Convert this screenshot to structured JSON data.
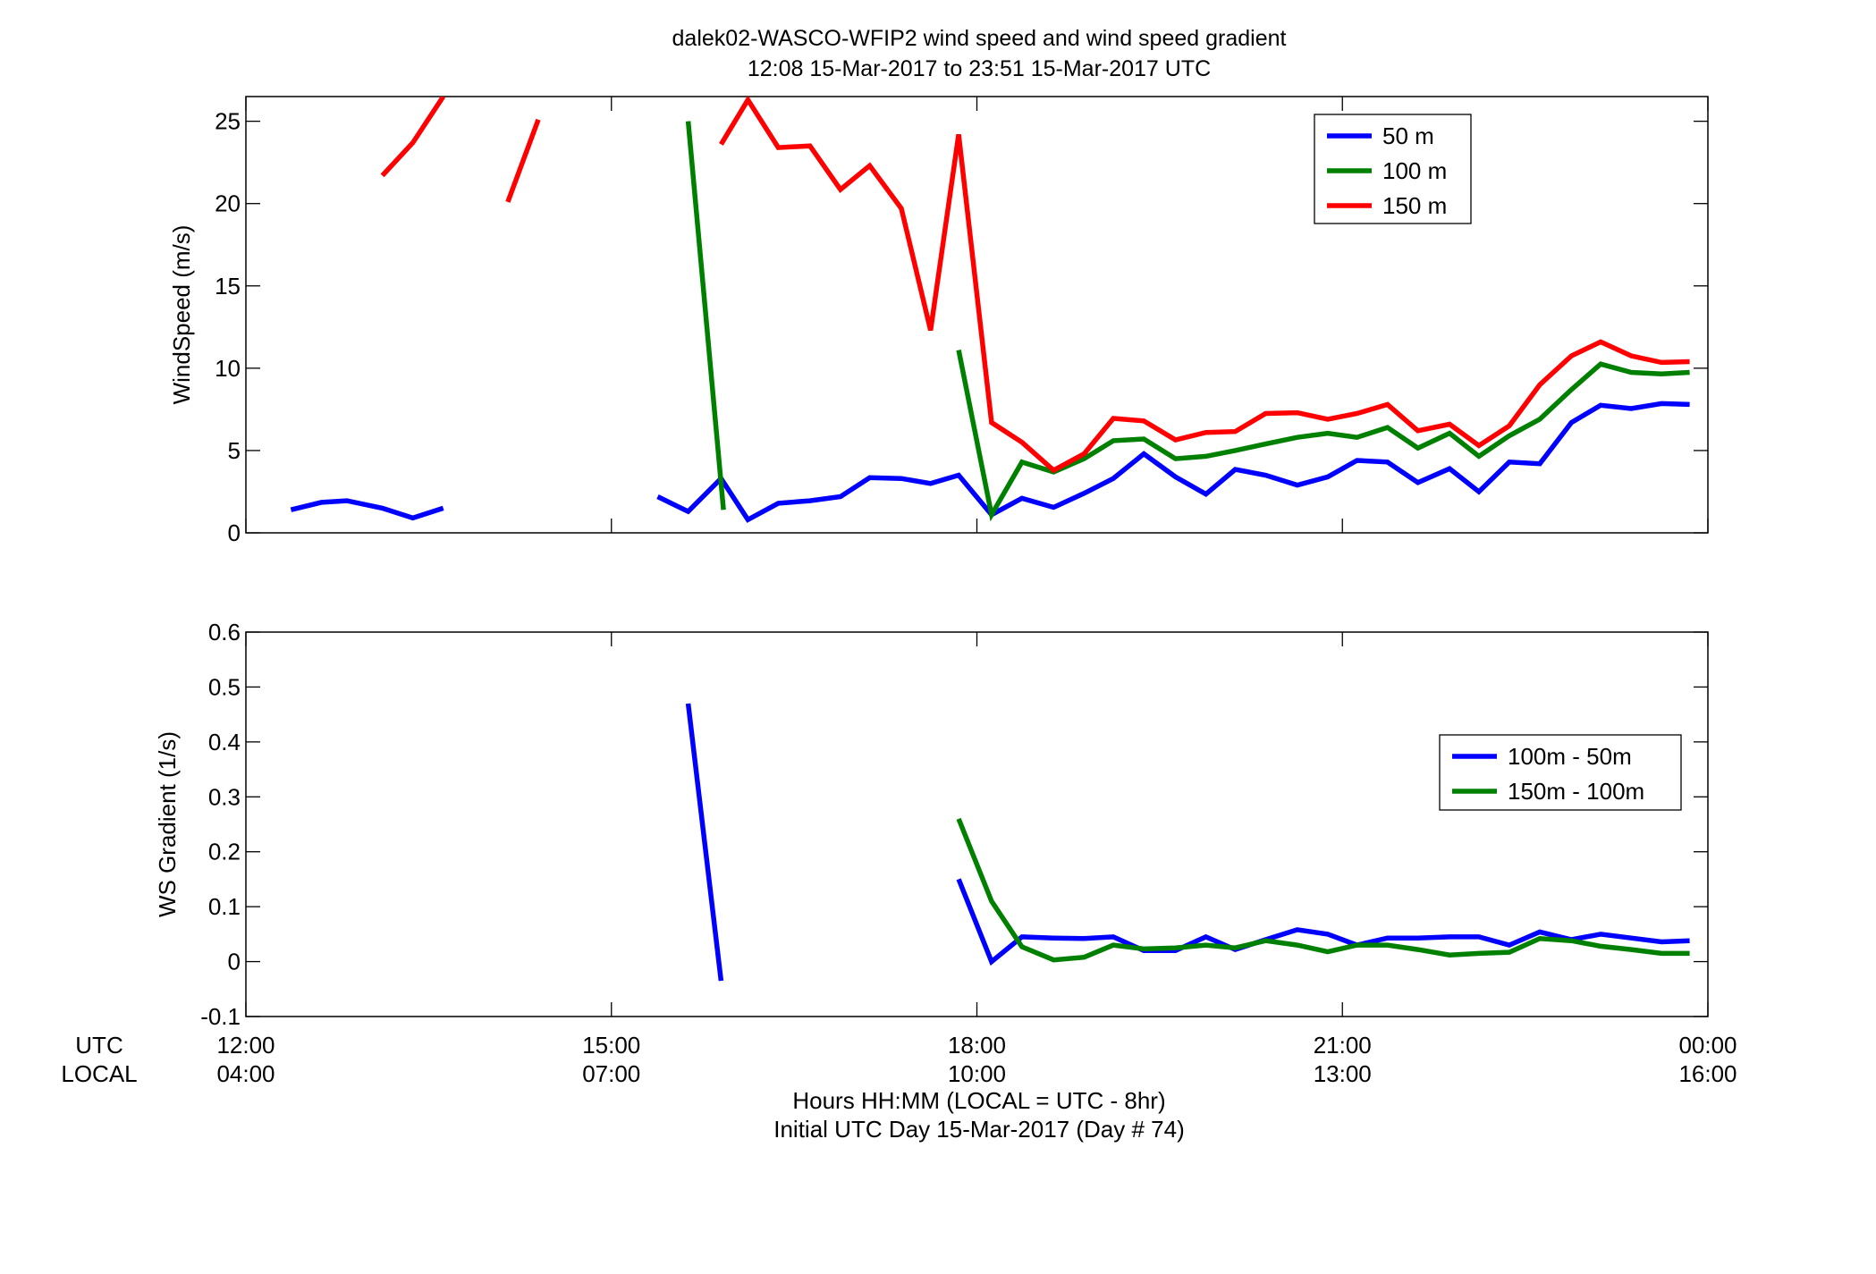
{
  "title": {
    "line1": "dalek02-WASCO-WFIP2  wind speed and wind speed gradient",
    "line2": "12:08 15-Mar-2017 to 23:51 15-Mar-2017  UTC"
  },
  "x_axis": {
    "row_label_utc": "UTC",
    "row_label_local": "LOCAL",
    "label_line1": "Hours HH:MM  (LOCAL = UTC - 8hr)",
    "label_line2": "Initial UTC Day 15-Mar-2017 (Day # 74)"
  },
  "chart_data": [
    {
      "id": "windspeed",
      "type": "line",
      "ylabel": "WindSpeed (m/s)",
      "xlabel": "Hours HH:MM  (LOCAL = UTC - 8hr)",
      "xlim": [
        12,
        24
      ],
      "ylim": [
        0,
        26.5
      ],
      "yticks": [
        0,
        5,
        10,
        15,
        20,
        25
      ],
      "ytick_labels": [
        "0",
        "5",
        "10",
        "15",
        "20",
        "25"
      ],
      "xticks": [
        12,
        15,
        18,
        21,
        24
      ],
      "xtick_labels_utc": [
        "12:00",
        "15:00",
        "18:00",
        "21:00",
        "00:00"
      ],
      "xtick_labels_local": [
        "04:00",
        "07:00",
        "10:00",
        "13:00",
        "16:00"
      ],
      "grid": false,
      "legend_position": "top-right",
      "series": [
        {
          "name": "50 m",
          "color": "#0000ff",
          "points": [
            [
              12.37,
              1.4
            ],
            [
              12.62,
              1.85
            ],
            [
              12.83,
              1.95
            ],
            [
              13.12,
              1.5
            ],
            [
              13.37,
              0.9
            ],
            [
              13.62,
              1.5
            ],
            null,
            [
              15.38,
              2.2
            ],
            [
              15.63,
              1.3
            ],
            [
              15.9,
              3.3
            ],
            [
              16.12,
              0.8
            ],
            [
              16.37,
              1.8
            ],
            [
              16.63,
              1.95
            ],
            [
              16.88,
              2.2
            ],
            [
              17.12,
              3.35
            ],
            [
              17.38,
              3.3
            ],
            [
              17.62,
              3.0
            ],
            [
              17.85,
              3.5
            ],
            [
              18.12,
              1.1
            ],
            [
              18.37,
              2.1
            ],
            [
              18.63,
              1.55
            ],
            [
              18.88,
              2.4
            ],
            [
              19.12,
              3.3
            ],
            [
              19.37,
              4.8
            ],
            [
              19.63,
              3.4
            ],
            [
              19.88,
              2.35
            ],
            [
              20.12,
              3.85
            ],
            [
              20.37,
              3.5
            ],
            [
              20.63,
              2.9
            ],
            [
              20.88,
              3.4
            ],
            [
              21.12,
              4.4
            ],
            [
              21.37,
              4.3
            ],
            [
              21.62,
              3.05
            ],
            [
              21.88,
              3.9
            ],
            [
              22.12,
              2.5
            ],
            [
              22.37,
              4.3
            ],
            [
              22.62,
              4.2
            ],
            [
              22.88,
              6.7
            ],
            [
              23.12,
              7.75
            ],
            [
              23.37,
              7.55
            ],
            [
              23.62,
              7.85
            ],
            [
              23.85,
              7.8
            ]
          ]
        },
        {
          "name": "100 m",
          "color": "#008000",
          "points": [
            [
              15.63,
              25.0
            ],
            [
              15.92,
              1.4
            ],
            null,
            [
              17.85,
              11.1
            ],
            [
              18.12,
              1.1
            ],
            [
              18.37,
              4.3
            ],
            [
              18.63,
              3.7
            ],
            [
              18.88,
              4.5
            ],
            [
              19.12,
              5.6
            ],
            [
              19.37,
              5.7
            ],
            [
              19.63,
              4.5
            ],
            [
              19.88,
              4.65
            ],
            [
              20.12,
              5.0
            ],
            [
              20.37,
              5.4
            ],
            [
              20.63,
              5.8
            ],
            [
              20.88,
              6.05
            ],
            [
              21.12,
              5.8
            ],
            [
              21.37,
              6.4
            ],
            [
              21.62,
              5.15
            ],
            [
              21.88,
              6.05
            ],
            [
              22.12,
              4.65
            ],
            [
              22.37,
              5.9
            ],
            [
              22.62,
              6.9
            ],
            [
              22.88,
              8.7
            ],
            [
              23.12,
              10.25
            ],
            [
              23.37,
              9.75
            ],
            [
              23.62,
              9.65
            ],
            [
              23.85,
              9.75
            ]
          ]
        },
        {
          "name": "150 m",
          "color": "#ff0000",
          "points": [
            [
              13.12,
              21.7
            ],
            [
              13.37,
              23.7
            ],
            [
              13.62,
              26.5
            ],
            null,
            [
              14.15,
              20.1
            ],
            [
              14.4,
              25.1
            ],
            null,
            [
              15.9,
              23.6
            ],
            [
              16.12,
              26.3
            ],
            [
              16.37,
              23.4
            ],
            [
              16.63,
              23.5
            ],
            [
              16.88,
              20.85
            ],
            [
              17.12,
              22.3
            ],
            [
              17.38,
              19.7
            ],
            [
              17.62,
              12.3
            ],
            [
              17.85,
              24.2
            ],
            [
              18.12,
              6.7
            ],
            [
              18.37,
              5.5
            ],
            [
              18.63,
              3.8
            ],
            [
              18.88,
              4.8
            ],
            [
              19.12,
              6.95
            ],
            [
              19.37,
              6.8
            ],
            [
              19.63,
              5.65
            ],
            [
              19.88,
              6.1
            ],
            [
              20.12,
              6.15
            ],
            [
              20.37,
              7.25
            ],
            [
              20.63,
              7.3
            ],
            [
              20.88,
              6.9
            ],
            [
              21.12,
              7.25
            ],
            [
              21.37,
              7.8
            ],
            [
              21.62,
              6.2
            ],
            [
              21.88,
              6.6
            ],
            [
              22.12,
              5.3
            ],
            [
              22.37,
              6.5
            ],
            [
              22.62,
              9.0
            ],
            [
              22.88,
              10.75
            ],
            [
              23.12,
              11.6
            ],
            [
              23.37,
              10.75
            ],
            [
              23.62,
              10.35
            ],
            [
              23.85,
              10.4
            ]
          ]
        }
      ]
    },
    {
      "id": "gradient",
      "type": "line",
      "ylabel": "WS Gradient (1/s)",
      "xlabel": "Hours HH:MM  (LOCAL = UTC - 8hr)",
      "xlim": [
        12,
        24
      ],
      "ylim": [
        -0.1,
        0.6
      ],
      "yticks": [
        -0.1,
        0,
        0.1,
        0.2,
        0.3,
        0.4,
        0.5,
        0.6
      ],
      "ytick_labels": [
        "-0.1",
        "0",
        "0.1",
        "0.2",
        "0.3",
        "0.4",
        "0.5",
        "0.6"
      ],
      "xticks": [
        12,
        15,
        18,
        21,
        24
      ],
      "xtick_labels_utc": [
        "12:00",
        "15:00",
        "18:00",
        "21:00",
        "00:00"
      ],
      "xtick_labels_local": [
        "04:00",
        "07:00",
        "10:00",
        "13:00",
        "16:00"
      ],
      "grid": false,
      "legend_position": "right",
      "series": [
        {
          "name": "100m - 50m",
          "color": "#0000ff",
          "points": [
            [
              15.63,
              0.47
            ],
            [
              15.9,
              -0.035
            ],
            null,
            [
              17.85,
              0.15
            ],
            [
              18.12,
              0.0
            ],
            [
              18.37,
              0.045
            ],
            [
              18.63,
              0.043
            ],
            [
              18.88,
              0.042
            ],
            [
              19.12,
              0.045
            ],
            [
              19.37,
              0.02
            ],
            [
              19.63,
              0.02
            ],
            [
              19.88,
              0.045
            ],
            [
              20.12,
              0.022
            ],
            [
              20.37,
              0.04
            ],
            [
              20.63,
              0.058
            ],
            [
              20.88,
              0.05
            ],
            [
              21.12,
              0.03
            ],
            [
              21.37,
              0.043
            ],
            [
              21.62,
              0.043
            ],
            [
              21.88,
              0.045
            ],
            [
              22.12,
              0.045
            ],
            [
              22.37,
              0.03
            ],
            [
              22.62,
              0.054
            ],
            [
              22.88,
              0.04
            ],
            [
              23.12,
              0.05
            ],
            [
              23.37,
              0.043
            ],
            [
              23.62,
              0.036
            ],
            [
              23.85,
              0.038
            ]
          ]
        },
        {
          "name": "150m - 100m",
          "color": "#008000",
          "points": [
            [
              17.85,
              0.26
            ],
            [
              18.12,
              0.11
            ],
            [
              18.37,
              0.027
            ],
            [
              18.63,
              0.003
            ],
            [
              18.88,
              0.008
            ],
            [
              19.12,
              0.03
            ],
            [
              19.37,
              0.023
            ],
            [
              19.63,
              0.025
            ],
            [
              19.88,
              0.03
            ],
            [
              20.12,
              0.025
            ],
            [
              20.37,
              0.038
            ],
            [
              20.63,
              0.03
            ],
            [
              20.88,
              0.018
            ],
            [
              21.12,
              0.03
            ],
            [
              21.37,
              0.03
            ],
            [
              21.62,
              0.022
            ],
            [
              21.88,
              0.012
            ],
            [
              22.12,
              0.015
            ],
            [
              22.37,
              0.017
            ],
            [
              22.62,
              0.042
            ],
            [
              22.88,
              0.038
            ],
            [
              23.12,
              0.028
            ],
            [
              23.37,
              0.022
            ],
            [
              23.62,
              0.015
            ],
            [
              23.85,
              0.015
            ]
          ]
        }
      ]
    }
  ]
}
